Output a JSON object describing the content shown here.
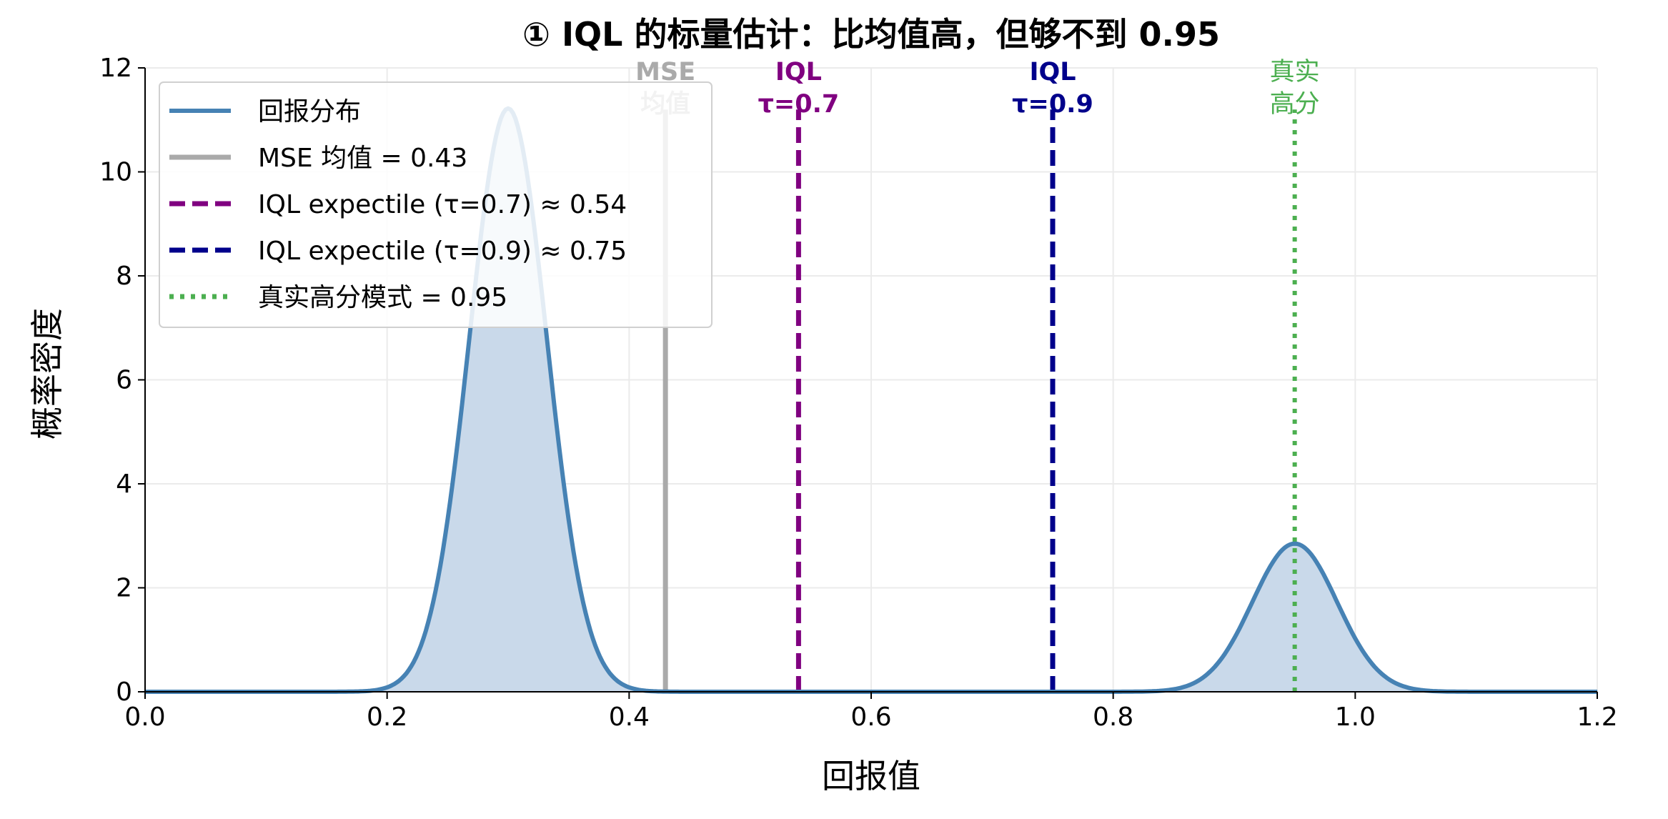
{
  "chart_data": {
    "type": "area",
    "title": "① IQL 的标量估计：比均值高，但够不到 0.95",
    "xlabel": "回报值",
    "ylabel": "概率密度",
    "xlim": [
      0.0,
      1.2
    ],
    "ylim": [
      0,
      12
    ],
    "x_ticks": [
      "0.0",
      "0.2",
      "0.4",
      "0.6",
      "0.8",
      "1.0",
      "1.2"
    ],
    "y_ticks": [
      "0",
      "2",
      "4",
      "6",
      "8",
      "10",
      "12"
    ],
    "grid": true,
    "legend_position": "top-left",
    "series": [
      {
        "name": "回报分布",
        "kind": "density",
        "color": "#4682B4",
        "fill_color": "#c9d9ea",
        "components": [
          {
            "mean": 0.3,
            "std": 0.032,
            "weight": 0.9
          },
          {
            "mean": 0.95,
            "std": 0.035,
            "weight": 0.25
          }
        ]
      }
    ],
    "vlines": [
      {
        "x": 0.43,
        "legend": "MSE 均值 = 0.43",
        "label_lines": [
          "MSE",
          "均值"
        ],
        "color": "#aaaaaa",
        "style": "solid"
      },
      {
        "x": 0.54,
        "legend": "IQL expectile (τ=0.7) ≈ 0.54",
        "label_lines": [
          "IQL",
          "τ=0.7"
        ],
        "color": "#800080",
        "style": "dashed"
      },
      {
        "x": 0.75,
        "legend": "IQL expectile (τ=0.9) ≈ 0.75",
        "label_lines": [
          "IQL",
          "τ=0.9"
        ],
        "color": "#00008b",
        "style": "dashed"
      },
      {
        "x": 0.95,
        "legend": "真实高分模式 = 0.95",
        "label_lines": [
          "真实",
          "高分"
        ],
        "color": "#4caf50",
        "style": "dotted"
      }
    ]
  }
}
